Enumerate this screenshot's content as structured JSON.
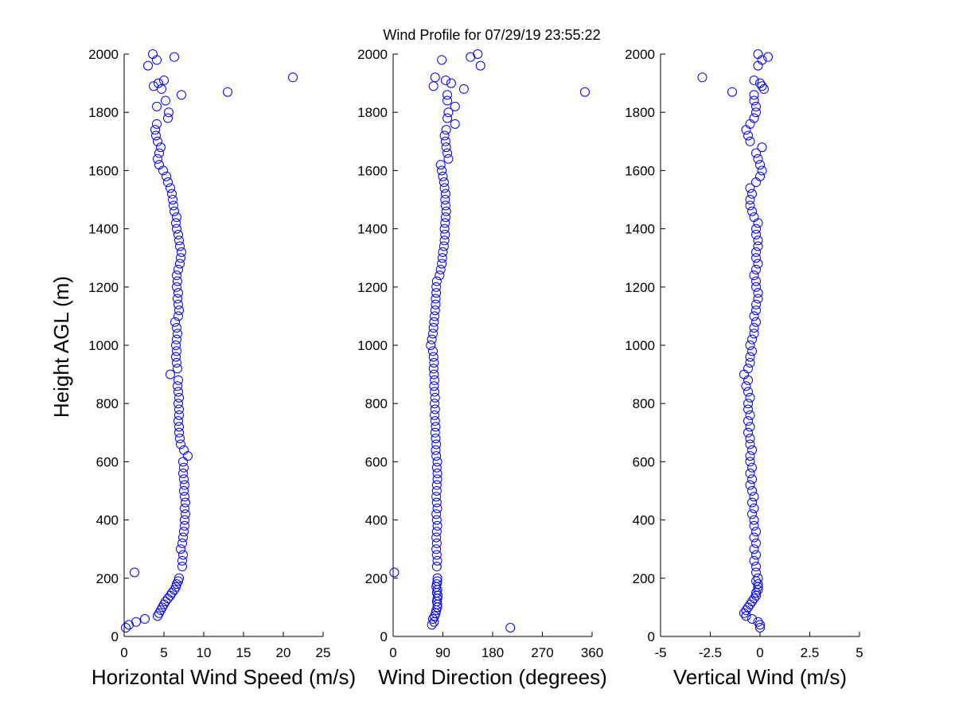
{
  "chart_data": [
    {
      "type": "scatter",
      "title": "Wind Profile for  07/29/19 23:55:22",
      "xlabel": "Horizontal Wind Speed (m/s)",
      "ylabel": "Height AGL (m)",
      "xlim": [
        0,
        25
      ],
      "ylim": [
        0,
        2000
      ],
      "xticks": [
        0,
        5,
        10,
        15,
        20,
        25
      ],
      "yticks": [
        0,
        200,
        400,
        600,
        800,
        1000,
        1200,
        1400,
        1600,
        1800,
        2000
      ],
      "grid": false,
      "series_key": "speed"
    },
    {
      "type": "scatter",
      "xlabel": "Wind Direction (degrees)",
      "xlim": [
        0,
        360
      ],
      "ylim": [
        0,
        2000
      ],
      "xticks": [
        0,
        90,
        180,
        270,
        360
      ],
      "yticks": [
        0,
        200,
        400,
        600,
        800,
        1000,
        1200,
        1400,
        1600,
        1800,
        2000
      ],
      "grid": false,
      "series_key": "direction"
    },
    {
      "type": "scatter",
      "xlabel": "Vertical Wind (m/s)",
      "xlim": [
        -5,
        5
      ],
      "ylim": [
        0,
        2000
      ],
      "xticks": [
        -5,
        -2.5,
        0,
        2.5,
        5
      ],
      "yticks": [
        0,
        200,
        400,
        600,
        800,
        1000,
        1200,
        1400,
        1600,
        1800,
        2000
      ],
      "grid": false,
      "series_key": "vertical"
    }
  ],
  "profile": {
    "marker_color": "#0000ff",
    "height": [
      30,
      40,
      50,
      60,
      70,
      80,
      90,
      100,
      110,
      120,
      130,
      140,
      150,
      160,
      170,
      180,
      190,
      200,
      220,
      240,
      260,
      280,
      300,
      320,
      340,
      360,
      380,
      400,
      420,
      440,
      460,
      480,
      500,
      520,
      540,
      560,
      580,
      600,
      620,
      640,
      660,
      680,
      700,
      720,
      740,
      760,
      780,
      800,
      820,
      840,
      860,
      880,
      900,
      920,
      940,
      960,
      980,
      1000,
      1020,
      1040,
      1060,
      1080,
      1100,
      1120,
      1140,
      1160,
      1180,
      1200,
      1220,
      1240,
      1260,
      1280,
      1300,
      1320,
      1340,
      1360,
      1380,
      1400,
      1420,
      1440,
      1460,
      1480,
      1500,
      1520,
      1540,
      1560,
      1580,
      1600,
      1620,
      1640,
      1660,
      1680,
      1700,
      1720,
      1740,
      1760,
      1780,
      1800,
      1820,
      1840,
      1860,
      1870,
      1880,
      1890,
      1900,
      1910,
      1920,
      1960,
      1980,
      1990,
      2000
    ],
    "speed": [
      0.2,
      0.6,
      1.5,
      2.6,
      4.2,
      4.4,
      4.6,
      4.8,
      5.0,
      5.2,
      5.5,
      5.8,
      6.0,
      6.3,
      6.5,
      6.6,
      6.8,
      6.9,
      1.3,
      7.3,
      7.3,
      7.4,
      7.1,
      7.3,
      7.4,
      7.5,
      7.6,
      7.6,
      7.7,
      7.6,
      7.7,
      7.6,
      7.5,
      7.6,
      7.5,
      7.4,
      7.5,
      7.4,
      8.0,
      7.5,
      7.1,
      7.0,
      6.9,
      6.9,
      6.8,
      6.9,
      6.9,
      6.8,
      6.9,
      6.8,
      6.7,
      6.8,
      5.8,
      6.7,
      6.6,
      6.5,
      6.6,
      6.5,
      6.6,
      6.7,
      6.6,
      6.4,
      6.8,
      6.9,
      6.8,
      6.7,
      6.8,
      6.6,
      6.7,
      6.6,
      6.8,
      7.0,
      7.1,
      7.2,
      7.0,
      6.9,
      6.8,
      6.6,
      6.5,
      6.6,
      6.3,
      6.2,
      6.1,
      6.0,
      5.8,
      5.5,
      5.3,
      4.9,
      4.4,
      4.2,
      4.4,
      4.6,
      4.2,
      4.0,
      3.9,
      4.1,
      5.5,
      5.6,
      4.1,
      5.2,
      7.2,
      13.0,
      4.7,
      3.7,
      4.3,
      5.0,
      21.2,
      3.0,
      4.1,
      6.3,
      3.6
    ],
    "direction": [
      212,
      70,
      74,
      72,
      75,
      77,
      78,
      80,
      80,
      79,
      80,
      81,
      79,
      80,
      78,
      79,
      80,
      80,
      2,
      79,
      80,
      79,
      78,
      79,
      78,
      79,
      80,
      79,
      78,
      80,
      79,
      78,
      79,
      79,
      80,
      80,
      79,
      80,
      78,
      77,
      78,
      77,
      76,
      77,
      76,
      75,
      76,
      75,
      76,
      75,
      74,
      75,
      74,
      73,
      74,
      73,
      72,
      68,
      70,
      72,
      73,
      74,
      75,
      76,
      77,
      77,
      78,
      78,
      79,
      84,
      86,
      88,
      89,
      90,
      92,
      93,
      94,
      93,
      94,
      95,
      96,
      95,
      94,
      95,
      93,
      92,
      90,
      88,
      86,
      100,
      98,
      96,
      95,
      93,
      96,
      112,
      98,
      100,
      112,
      98,
      98,
      347,
      128,
      73,
      105,
      95,
      76,
      158,
      88,
      140,
      153
    ],
    "vertical": [
      0,
      0,
      -0.1,
      -0.4,
      -0.7,
      -0.8,
      -0.7,
      -0.6,
      -0.5,
      -0.4,
      -0.3,
      -0.2,
      -0.2,
      -0.1,
      -0.1,
      -0.1,
      -0.2,
      -0.1,
      -0.2,
      -0.2,
      -0.3,
      -0.2,
      -0.3,
      -0.2,
      -0.3,
      -0.2,
      -0.3,
      -0.3,
      -0.4,
      -0.3,
      -0.4,
      -0.3,
      -0.4,
      -0.5,
      -0.4,
      -0.5,
      -0.4,
      -0.5,
      -0.5,
      -0.4,
      -0.5,
      -0.5,
      -0.6,
      -0.5,
      -0.6,
      -0.5,
      -0.6,
      -0.6,
      -0.5,
      -0.6,
      -0.7,
      -0.6,
      -0.8,
      -0.6,
      -0.5,
      -0.5,
      -0.4,
      -0.5,
      -0.4,
      -0.3,
      -0.3,
      -0.2,
      -0.3,
      -0.2,
      -0.2,
      -0.1,
      -0.1,
      -0.2,
      -0.2,
      -0.3,
      -0.2,
      -0.1,
      -0.2,
      -0.2,
      -0.1,
      -0.1,
      -0.2,
      -0.2,
      -0.1,
      -0.3,
      -0.4,
      -0.5,
      -0.5,
      -0.4,
      -0.5,
      -0.2,
      0,
      0.1,
      0,
      -0.1,
      -0.2,
      0.1,
      -0.5,
      -0.6,
      -0.7,
      -0.5,
      -0.3,
      -0.2,
      -0.2,
      -0.3,
      -0.3,
      -1.4,
      0.2,
      0.1,
      0,
      -0.3,
      -2.9,
      -0.1,
      0.1,
      0.4,
      -0.1
    ]
  }
}
